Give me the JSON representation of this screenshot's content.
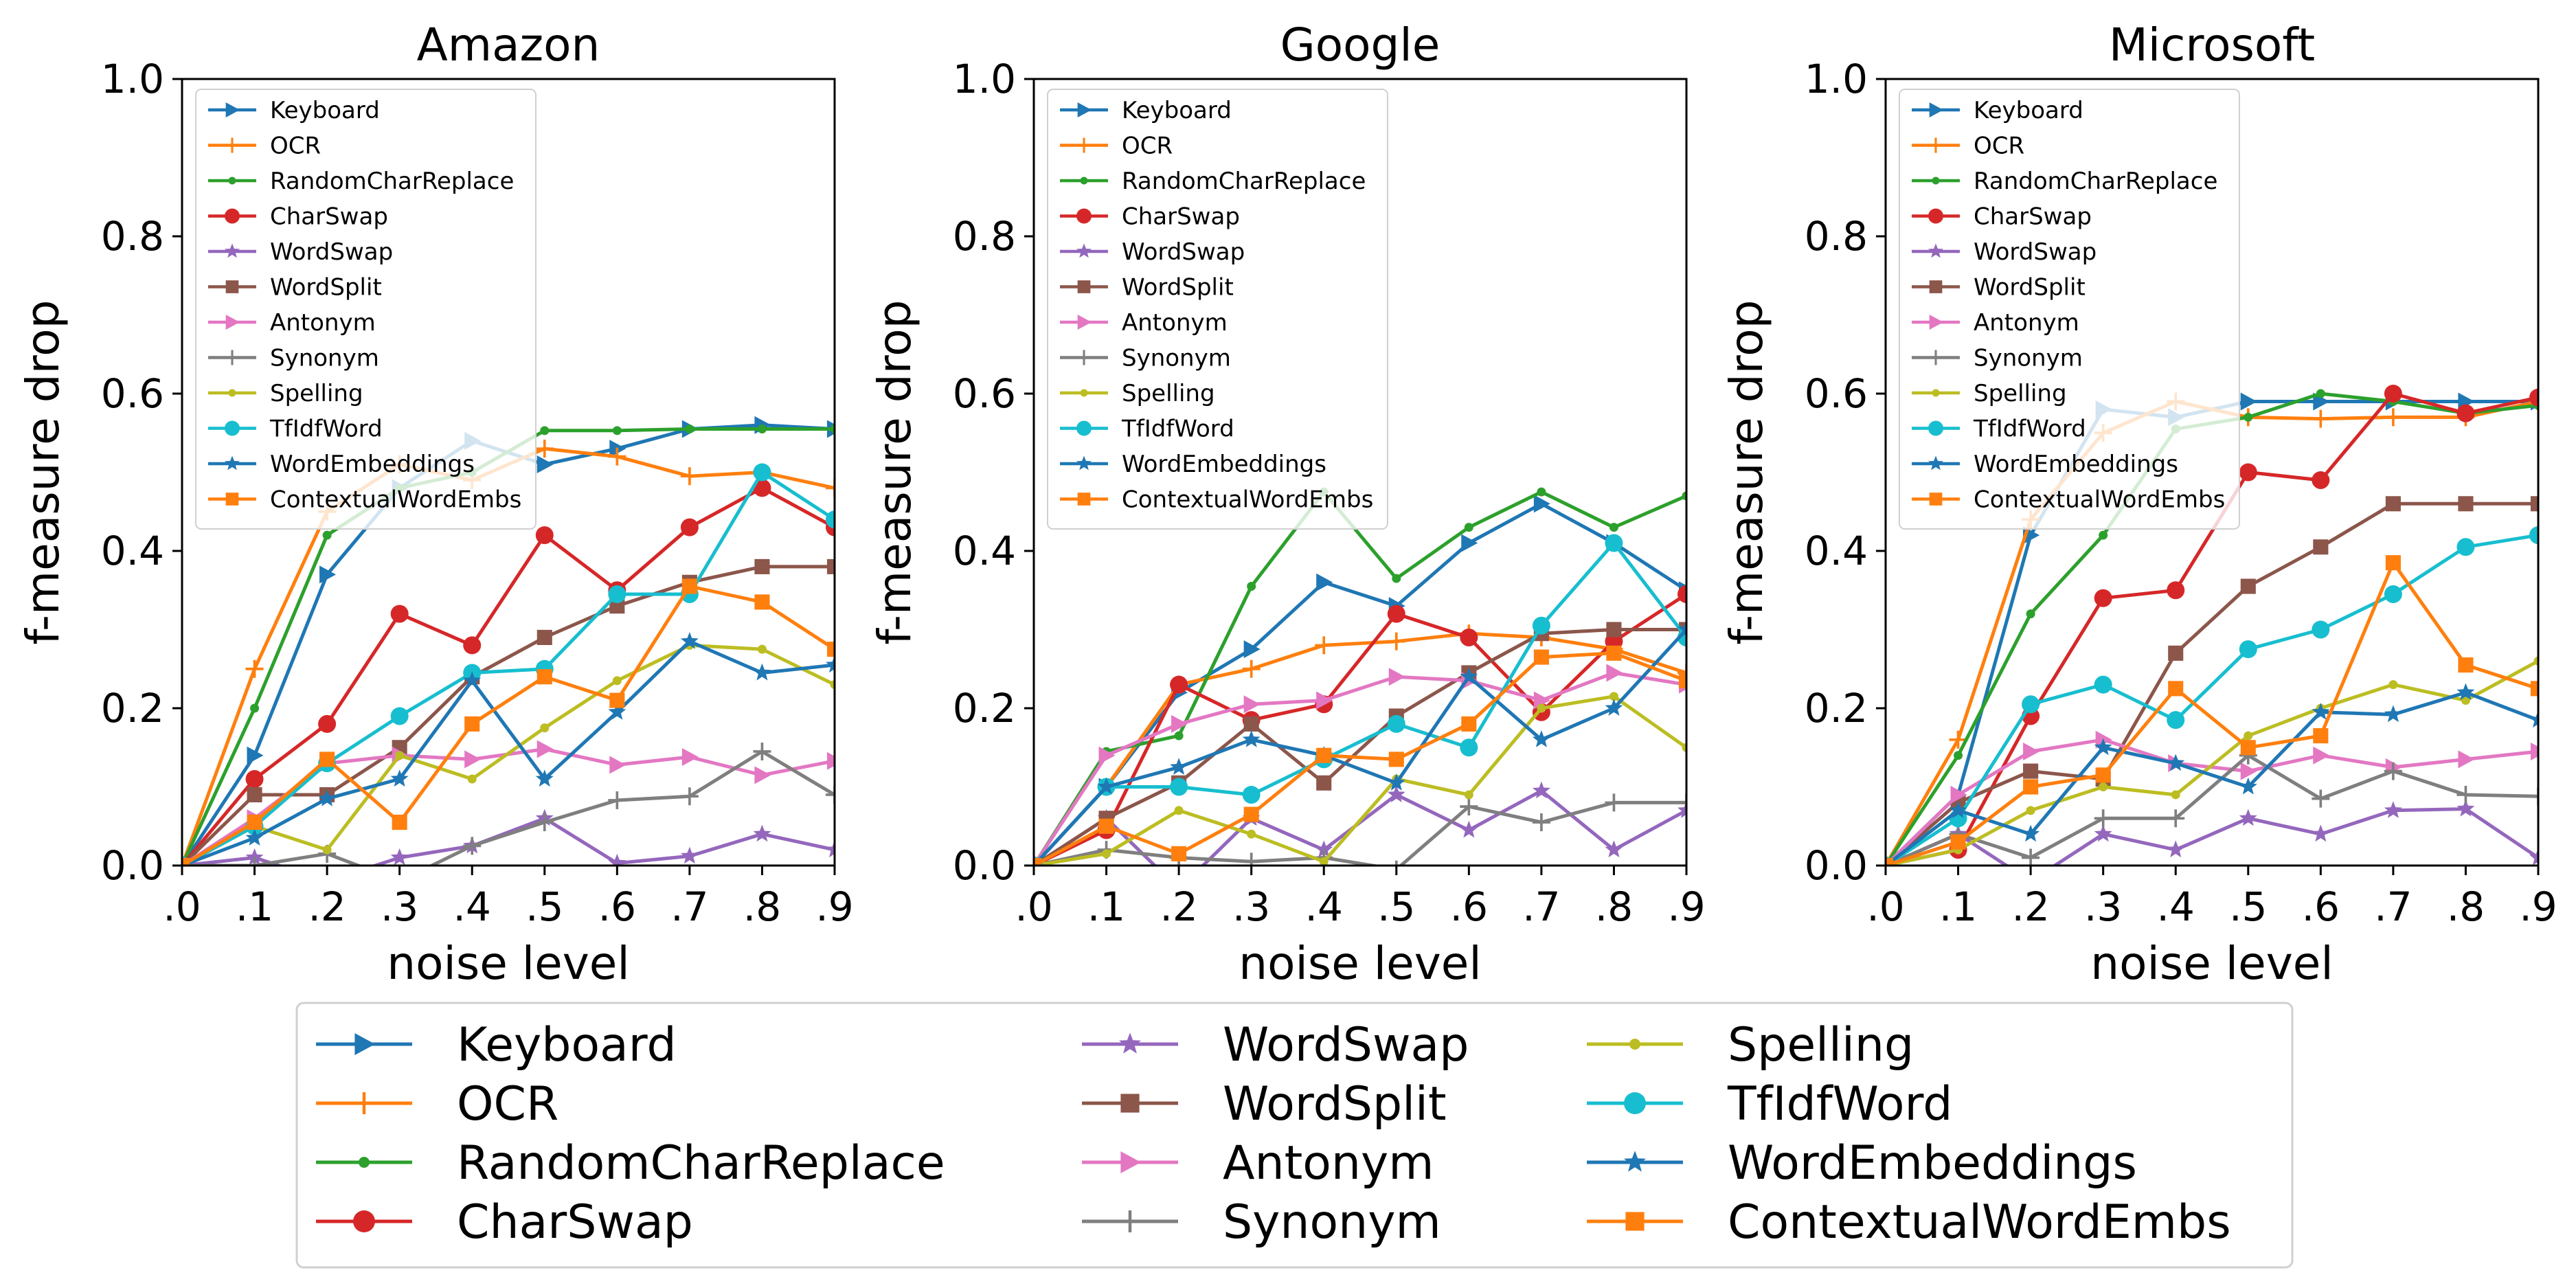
{
  "chart_data": [
    {
      "type": "line",
      "title": "Amazon",
      "xlabel": "noise level",
      "ylabel": "f-measure drop",
      "x": [
        0.0,
        0.1,
        0.2,
        0.3,
        0.4,
        0.5,
        0.6,
        0.7,
        0.8,
        0.9
      ],
      "xticks": [
        ".0",
        ".1",
        ".2",
        ".3",
        ".4",
        ".5",
        ".6",
        ".7",
        ".8",
        ".9"
      ],
      "yticks": [
        "0.0",
        "0.2",
        "0.4",
        "0.6",
        "0.8",
        "1.0"
      ],
      "xlim": [
        0.0,
        0.9
      ],
      "ylim": [
        0.0,
        1.0
      ],
      "grid": false,
      "legend_position": "upper-left",
      "series": [
        {
          "name": "Keyboard",
          "color": "#1f77b4",
          "marker": "triangle-right",
          "values": [
            0.0,
            0.14,
            0.37,
            0.48,
            0.54,
            0.51,
            0.53,
            0.555,
            0.56,
            0.555
          ]
        },
        {
          "name": "OCR",
          "color": "#ff7f0e",
          "marker": "plus",
          "values": [
            0.0,
            0.25,
            0.45,
            0.51,
            0.49,
            0.53,
            0.52,
            0.495,
            0.5,
            0.48
          ]
        },
        {
          "name": "RandomCharReplace",
          "color": "#2ca02c",
          "marker": "dot",
          "values": [
            0.0,
            0.2,
            0.42,
            0.48,
            0.5,
            0.553,
            0.553,
            0.555,
            0.555,
            0.555
          ]
        },
        {
          "name": "CharSwap",
          "color": "#d62728",
          "marker": "circle",
          "values": [
            0.0,
            0.11,
            0.18,
            0.32,
            0.28,
            0.42,
            0.35,
            0.43,
            0.48,
            0.43
          ]
        },
        {
          "name": "WordSwap",
          "color": "#9467bd",
          "marker": "star",
          "values": [
            0.0,
            0.01,
            -0.02,
            0.01,
            0.025,
            0.06,
            0.003,
            0.012,
            0.04,
            0.02
          ]
        },
        {
          "name": "WordSplit",
          "color": "#8c564b",
          "marker": "square",
          "values": [
            0.0,
            0.09,
            0.09,
            0.15,
            0.24,
            0.29,
            0.33,
            0.36,
            0.38,
            0.38
          ]
        },
        {
          "name": "Antonym",
          "color": "#e377c2",
          "marker": "triangle-right",
          "values": [
            0.0,
            0.06,
            0.13,
            0.14,
            0.135,
            0.148,
            0.128,
            0.138,
            0.115,
            0.133
          ]
        },
        {
          "name": "Synonym",
          "color": "#7f7f7f",
          "marker": "plus",
          "values": [
            0.0,
            0.0,
            0.015,
            -0.02,
            0.025,
            0.055,
            0.083,
            0.088,
            0.145,
            0.09
          ]
        },
        {
          "name": "Spelling",
          "color": "#bcbd22",
          "marker": "dot",
          "values": [
            0.0,
            0.05,
            0.02,
            0.14,
            0.11,
            0.175,
            0.235,
            0.28,
            0.275,
            0.23
          ]
        },
        {
          "name": "TfIdfWord",
          "color": "#17becf",
          "marker": "circle",
          "values": [
            0.0,
            0.05,
            0.13,
            0.19,
            0.245,
            0.25,
            0.345,
            0.345,
            0.5,
            0.44
          ]
        },
        {
          "name": "WordEmbeddings",
          "color": "#1f77b4",
          "marker": "star",
          "values": [
            0.0,
            0.035,
            0.085,
            0.11,
            0.235,
            0.11,
            0.195,
            0.285,
            0.245,
            0.255
          ]
        },
        {
          "name": "ContextualWordEmbs",
          "color": "#ff7f0e",
          "marker": "square",
          "values": [
            0.0,
            0.055,
            0.135,
            0.055,
            0.18,
            0.24,
            0.21,
            0.355,
            0.335,
            0.275
          ]
        }
      ]
    },
    {
      "type": "line",
      "title": "Google",
      "xlabel": "noise level",
      "ylabel": "f-measure drop",
      "x": [
        0.0,
        0.1,
        0.2,
        0.3,
        0.4,
        0.5,
        0.6,
        0.7,
        0.8,
        0.9
      ],
      "xticks": [
        ".0",
        ".1",
        ".2",
        ".3",
        ".4",
        ".5",
        ".6",
        ".7",
        ".8",
        ".9"
      ],
      "yticks": [
        "0.0",
        "0.2",
        "0.4",
        "0.6",
        "0.8",
        "1.0"
      ],
      "xlim": [
        0.0,
        0.9
      ],
      "ylim": [
        0.0,
        1.0
      ],
      "grid": false,
      "legend_position": "upper-left",
      "series": [
        {
          "name": "Keyboard",
          "color": "#1f77b4",
          "marker": "triangle-right",
          "values": [
            0.0,
            0.1,
            0.22,
            0.275,
            0.36,
            0.33,
            0.41,
            0.46,
            0.41,
            0.35
          ]
        },
        {
          "name": "OCR",
          "color": "#ff7f0e",
          "marker": "plus",
          "values": [
            0.0,
            0.1,
            0.23,
            0.25,
            0.28,
            0.285,
            0.295,
            0.29,
            0.275,
            0.245
          ]
        },
        {
          "name": "RandomCharReplace",
          "color": "#2ca02c",
          "marker": "dot",
          "values": [
            0.0,
            0.145,
            0.165,
            0.355,
            0.475,
            0.365,
            0.43,
            0.475,
            0.43,
            0.47
          ]
        },
        {
          "name": "CharSwap",
          "color": "#d62728",
          "marker": "circle",
          "values": [
            0.0,
            0.045,
            0.23,
            0.185,
            0.205,
            0.32,
            0.29,
            0.195,
            0.285,
            0.345
          ]
        },
        {
          "name": "WordSwap",
          "color": "#9467bd",
          "marker": "star",
          "values": [
            0.0,
            0.06,
            -0.03,
            0.06,
            0.02,
            0.09,
            0.045,
            0.095,
            0.02,
            0.07
          ]
        },
        {
          "name": "WordSplit",
          "color": "#8c564b",
          "marker": "square",
          "values": [
            0.0,
            0.06,
            0.105,
            0.18,
            0.105,
            0.19,
            0.245,
            0.295,
            0.3,
            0.3
          ]
        },
        {
          "name": "Antonym",
          "color": "#e377c2",
          "marker": "triangle-right",
          "values": [
            0.0,
            0.14,
            0.18,
            0.205,
            0.21,
            0.24,
            0.235,
            0.21,
            0.245,
            0.23
          ]
        },
        {
          "name": "Synonym",
          "color": "#7f7f7f",
          "marker": "plus",
          "values": [
            0.0,
            0.02,
            0.01,
            0.005,
            0.01,
            -0.005,
            0.075,
            0.055,
            0.08,
            0.08
          ]
        },
        {
          "name": "Spelling",
          "color": "#bcbd22",
          "marker": "dot",
          "values": [
            0.0,
            0.015,
            0.07,
            0.04,
            0.005,
            0.11,
            0.09,
            0.2,
            0.215,
            0.15
          ]
        },
        {
          "name": "TfIdfWord",
          "color": "#17becf",
          "marker": "circle",
          "values": [
            0.0,
            0.1,
            0.1,
            0.09,
            0.135,
            0.18,
            0.15,
            0.305,
            0.41,
            0.29
          ]
        },
        {
          "name": "WordEmbeddings",
          "color": "#1f77b4",
          "marker": "star",
          "values": [
            0.0,
            0.1,
            0.125,
            0.16,
            0.14,
            0.105,
            0.24,
            0.16,
            0.2,
            0.3
          ]
        },
        {
          "name": "ContextualWordEmbs",
          "color": "#ff7f0e",
          "marker": "square",
          "values": [
            0.0,
            0.05,
            0.015,
            0.065,
            0.14,
            0.135,
            0.18,
            0.265,
            0.27,
            0.235
          ]
        }
      ]
    },
    {
      "type": "line",
      "title": "Microsoft",
      "xlabel": "noise level",
      "ylabel": "f-measure drop",
      "x": [
        0.0,
        0.1,
        0.2,
        0.3,
        0.4,
        0.5,
        0.6,
        0.7,
        0.8,
        0.9
      ],
      "xticks": [
        ".0",
        ".1",
        ".2",
        ".3",
        ".4",
        ".5",
        ".6",
        ".7",
        ".8",
        ".9"
      ],
      "yticks": [
        "0.0",
        "0.2",
        "0.4",
        "0.6",
        "0.8",
        "1.0"
      ],
      "xlim": [
        0.0,
        0.9
      ],
      "ylim": [
        0.0,
        1.0
      ],
      "grid": false,
      "legend_position": "upper-left",
      "series": [
        {
          "name": "Keyboard",
          "color": "#1f77b4",
          "marker": "triangle-right",
          "values": [
            0.0,
            0.09,
            0.42,
            0.58,
            0.57,
            0.59,
            0.59,
            0.59,
            0.59,
            0.59
          ]
        },
        {
          "name": "OCR",
          "color": "#ff7f0e",
          "marker": "plus",
          "values": [
            0.0,
            0.16,
            0.44,
            0.55,
            0.59,
            0.57,
            0.568,
            0.57,
            0.57,
            0.59
          ]
        },
        {
          "name": "RandomCharReplace",
          "color": "#2ca02c",
          "marker": "dot",
          "values": [
            0.0,
            0.14,
            0.32,
            0.42,
            0.555,
            0.57,
            0.6,
            0.59,
            0.575,
            0.585
          ]
        },
        {
          "name": "CharSwap",
          "color": "#d62728",
          "marker": "circle",
          "values": [
            0.0,
            0.02,
            0.19,
            0.34,
            0.35,
            0.5,
            0.49,
            0.6,
            0.575,
            0.595
          ]
        },
        {
          "name": "WordSwap",
          "color": "#9467bd",
          "marker": "star",
          "values": [
            0.0,
            0.04,
            -0.02,
            0.04,
            0.02,
            0.06,
            0.04,
            0.07,
            0.072,
            0.01
          ]
        },
        {
          "name": "WordSplit",
          "color": "#8c564b",
          "marker": "square",
          "values": [
            0.0,
            0.08,
            0.12,
            0.11,
            0.27,
            0.355,
            0.405,
            0.46,
            0.46,
            0.46
          ]
        },
        {
          "name": "Antonym",
          "color": "#e377c2",
          "marker": "triangle-right",
          "values": [
            0.0,
            0.09,
            0.145,
            0.16,
            0.13,
            0.12,
            0.14,
            0.125,
            0.135,
            0.145
          ]
        },
        {
          "name": "Synonym",
          "color": "#7f7f7f",
          "marker": "plus",
          "values": [
            0.0,
            0.04,
            0.01,
            0.06,
            0.06,
            0.14,
            0.085,
            0.12,
            0.09,
            0.088
          ]
        },
        {
          "name": "Spelling",
          "color": "#bcbd22",
          "marker": "dot",
          "values": [
            0.0,
            0.02,
            0.07,
            0.1,
            0.09,
            0.165,
            0.2,
            0.23,
            0.21,
            0.26
          ]
        },
        {
          "name": "TfIdfWord",
          "color": "#17becf",
          "marker": "circle",
          "values": [
            0.0,
            0.06,
            0.205,
            0.23,
            0.185,
            0.275,
            0.3,
            0.345,
            0.405,
            0.42
          ]
        },
        {
          "name": "WordEmbeddings",
          "color": "#1f77b4",
          "marker": "star",
          "values": [
            0.0,
            0.07,
            0.04,
            0.15,
            0.13,
            0.1,
            0.195,
            0.192,
            0.22,
            0.185
          ]
        },
        {
          "name": "ContextualWordEmbs",
          "color": "#ff7f0e",
          "marker": "square",
          "values": [
            0.0,
            0.03,
            0.1,
            0.115,
            0.225,
            0.15,
            0.165,
            0.385,
            0.255,
            0.225
          ]
        }
      ]
    }
  ],
  "legend": {
    "entries": [
      {
        "name": "Keyboard",
        "color": "#1f77b4",
        "marker": "triangle-right"
      },
      {
        "name": "OCR",
        "color": "#ff7f0e",
        "marker": "plus"
      },
      {
        "name": "RandomCharReplace",
        "color": "#2ca02c",
        "marker": "dot"
      },
      {
        "name": "CharSwap",
        "color": "#d62728",
        "marker": "circle"
      },
      {
        "name": "WordSwap",
        "color": "#9467bd",
        "marker": "star"
      },
      {
        "name": "WordSplit",
        "color": "#8c564b",
        "marker": "square"
      },
      {
        "name": "Antonym",
        "color": "#e377c2",
        "marker": "triangle-right"
      },
      {
        "name": "Synonym",
        "color": "#7f7f7f",
        "marker": "plus"
      },
      {
        "name": "Spelling",
        "color": "#bcbd22",
        "marker": "dot"
      },
      {
        "name": "TfIdfWord",
        "color": "#17becf",
        "marker": "circle"
      },
      {
        "name": "WordEmbeddings",
        "color": "#1f77b4",
        "marker": "star"
      },
      {
        "name": "ContextualWordEmbs",
        "color": "#ff7f0e",
        "marker": "square"
      }
    ]
  }
}
